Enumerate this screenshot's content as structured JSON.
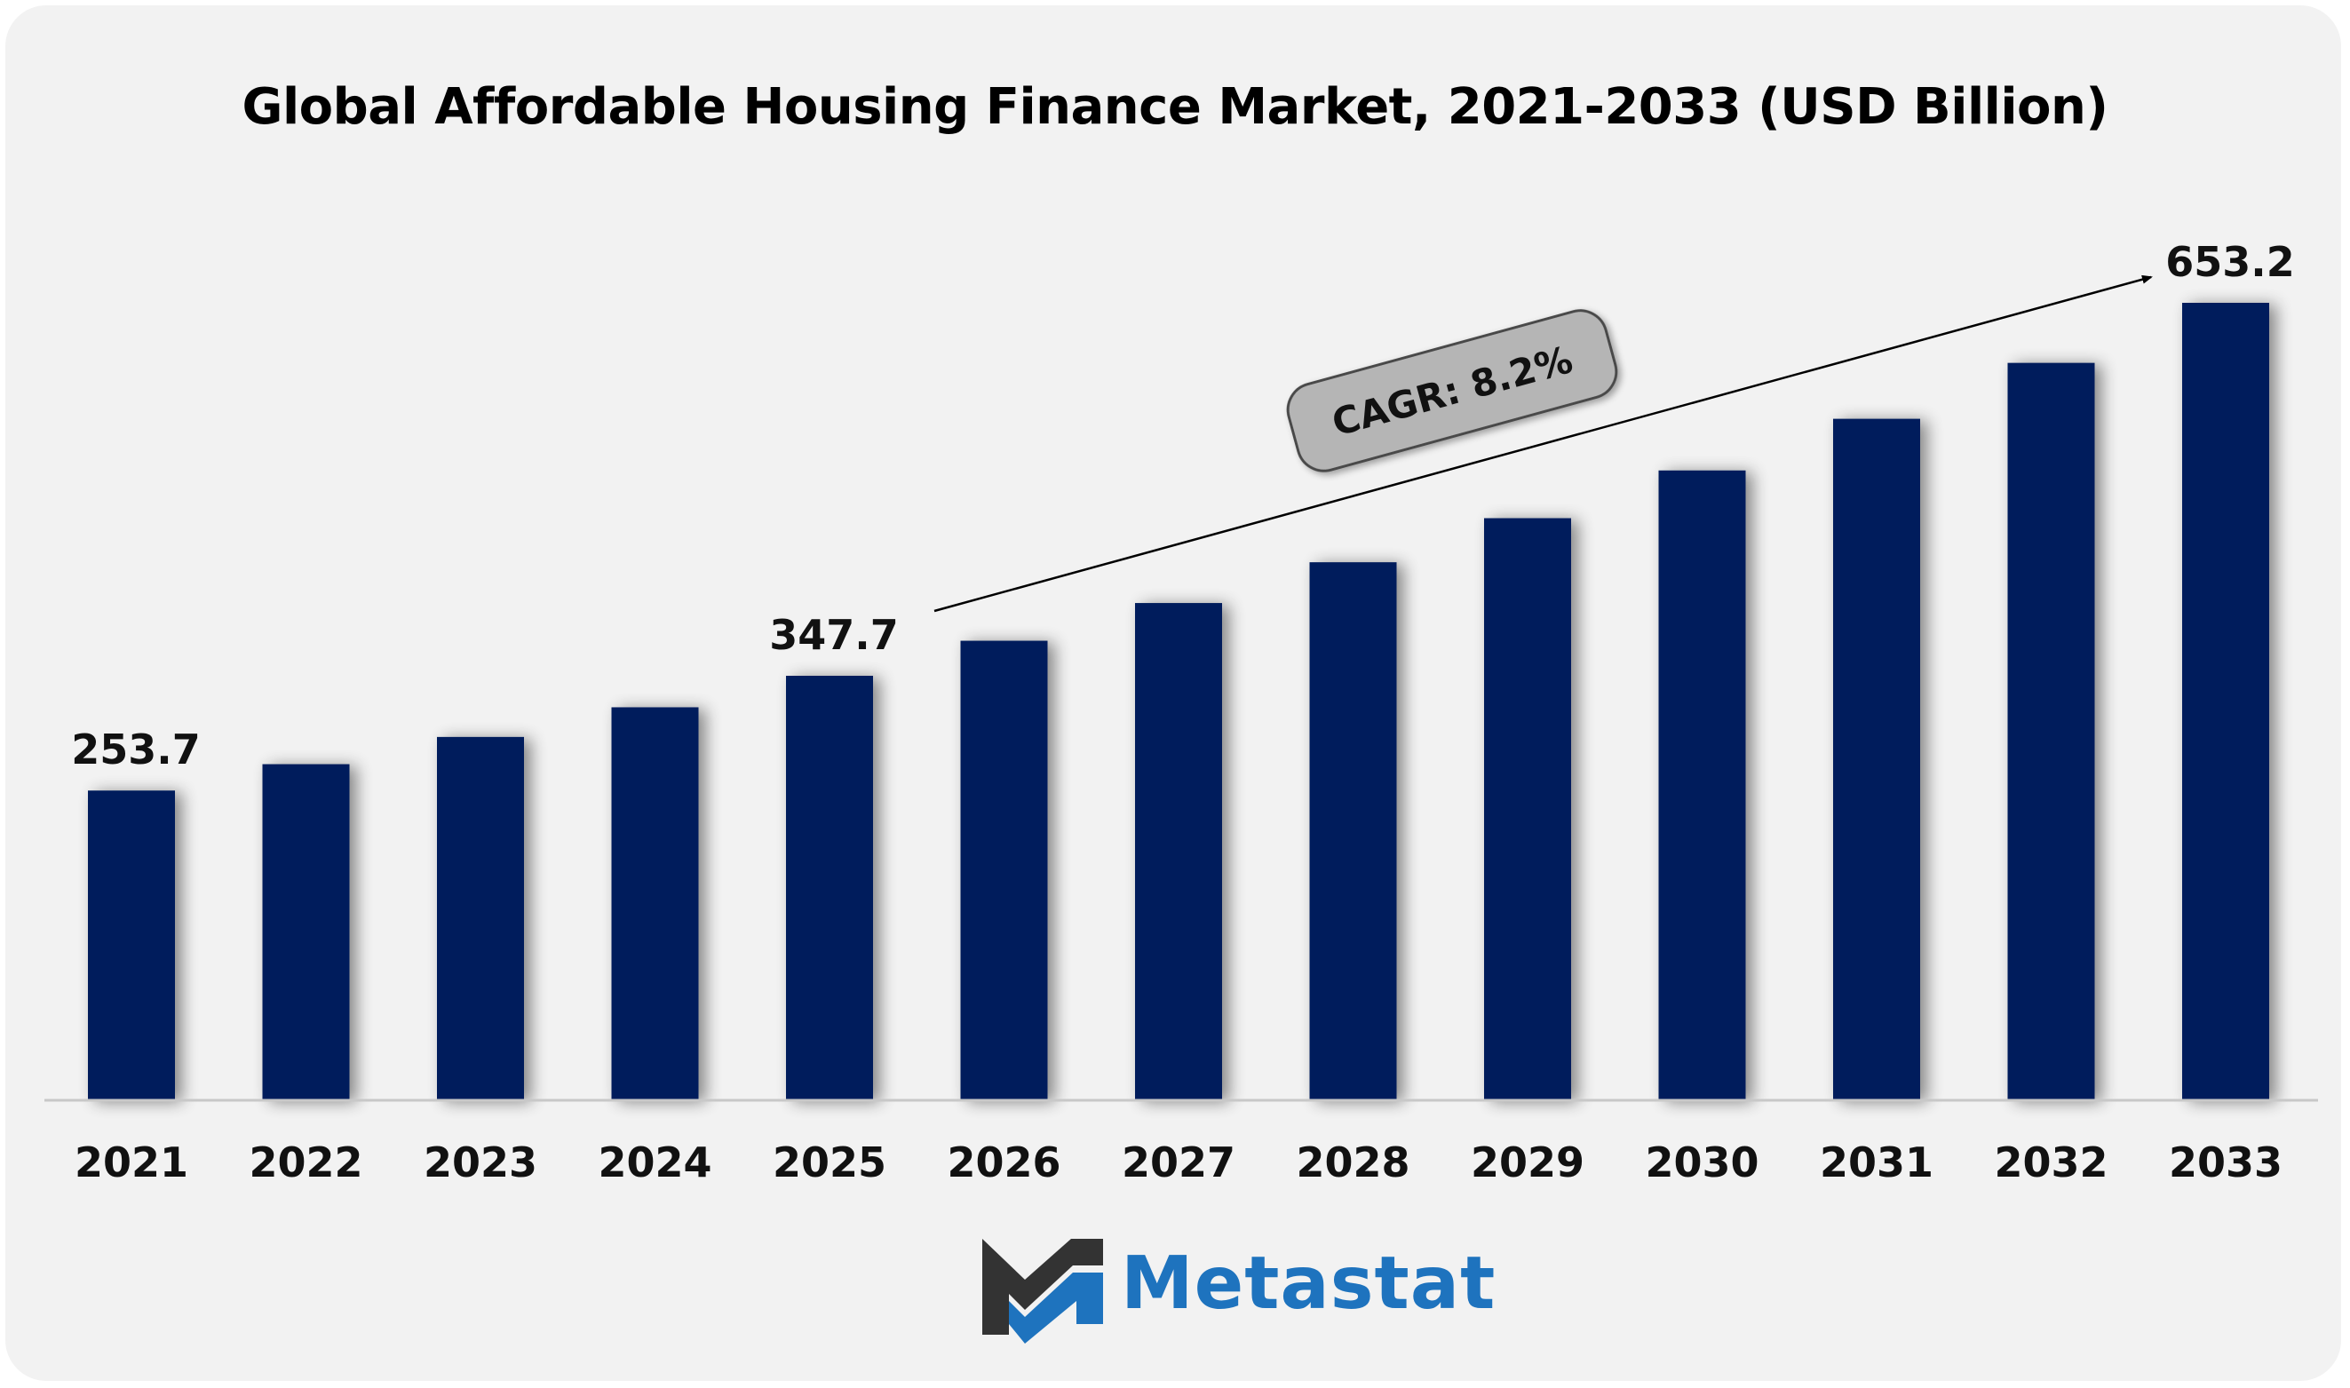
{
  "chart_data": {
    "type": "bar",
    "title": "Global Affordable Housing Finance Market, 2021-2033 (USD Billion)",
    "categories": [
      "2021",
      "2022",
      "2023",
      "2024",
      "2025",
      "2026",
      "2027",
      "2028",
      "2029",
      "2030",
      "2031",
      "2032",
      "2033"
    ],
    "values": [
      253.7,
      275.3,
      297.6,
      321.9,
      347.7,
      376.4,
      407.3,
      440.7,
      476.8,
      515.9,
      558.2,
      604.0,
      653.2
    ],
    "labeled_values": [
      {
        "category": "2021",
        "text": "253.7"
      },
      {
        "category": "2025",
        "text": "347.7"
      },
      {
        "category": "2033",
        "text": "653.2"
      }
    ],
    "annotation": "CAGR: 8.2%",
    "xlabel": "",
    "ylabel": "",
    "ylim": [
      0,
      720
    ],
    "bar_color": "#001f5c",
    "grid": false,
    "legend": "none"
  },
  "brand": {
    "name": "Metastat",
    "color_primary": "#1e73be",
    "color_dark": "#333333",
    "icon": "metastat-m-logo-icon"
  }
}
